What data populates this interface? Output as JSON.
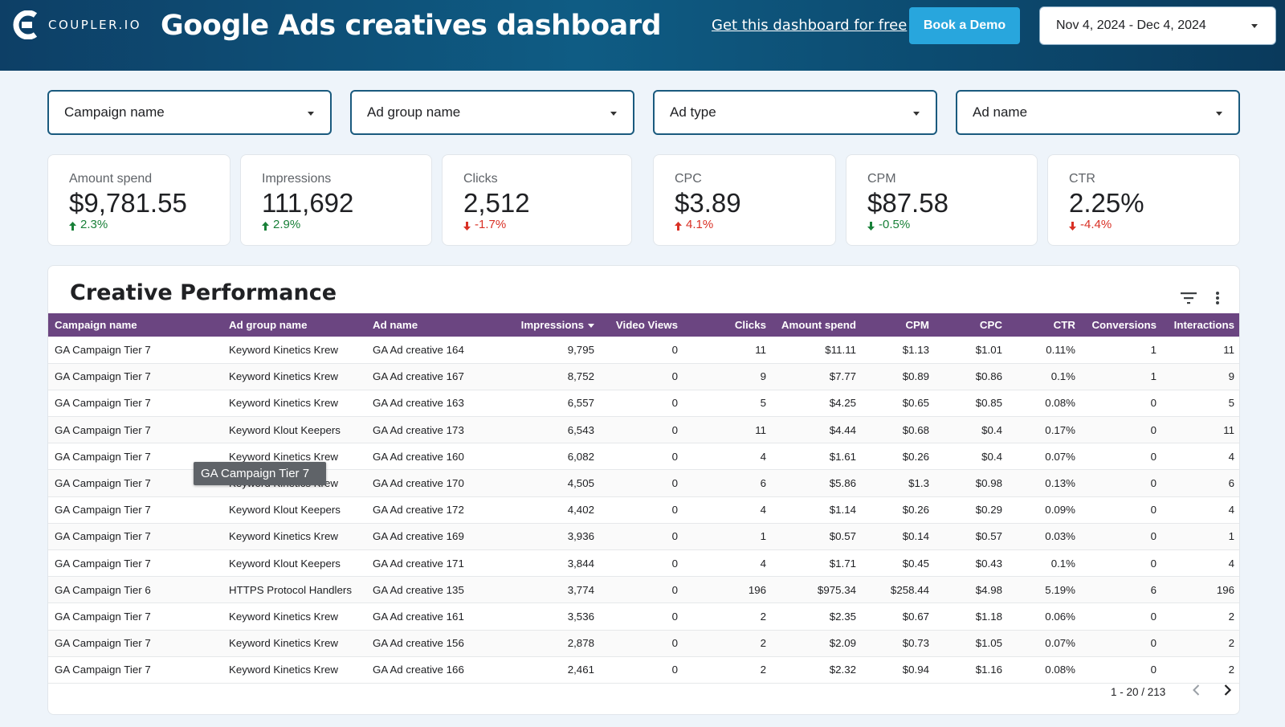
{
  "header": {
    "logo_text": "COUPLER.IO",
    "title": "Google Ads creatives dashboard",
    "free_link": "Get this dashboard for free",
    "demo_button": "Book a Demo",
    "date_range": "Nov 4, 2024 - Dec 4, 2024",
    "bg_color": "#0f5c84",
    "accent_color": "#28a6dd"
  },
  "filters": [
    {
      "label": "Campaign name"
    },
    {
      "label": "Ad group name"
    },
    {
      "label": "Ad type"
    },
    {
      "label": "Ad name"
    }
  ],
  "kpis": [
    {
      "label": "Amount spend",
      "value": "$9,781.55",
      "delta": "2.3%",
      "direction": "up",
      "sentiment": "good"
    },
    {
      "label": "Impressions",
      "value": "111,692",
      "delta": "2.9%",
      "direction": "up",
      "sentiment": "good"
    },
    {
      "label": "Clicks",
      "value": "2,512",
      "delta": "-1.7%",
      "direction": "down",
      "sentiment": "bad"
    },
    {
      "label": "CPC",
      "value": "$3.89",
      "delta": "4.1%",
      "direction": "up",
      "sentiment": "bad"
    },
    {
      "label": "CPM",
      "value": "$87.58",
      "delta": "-0.5%",
      "direction": "down",
      "sentiment": "good"
    },
    {
      "label": "CTR",
      "value": "2.25%",
      "delta": "-4.4%",
      "direction": "down",
      "sentiment": "bad"
    }
  ],
  "table": {
    "title": "Creative Performance",
    "header_color": "#6b4581",
    "columns": [
      "Campaign name",
      "Ad group name",
      "Ad name",
      "Impressions",
      "Video Views",
      "Clicks",
      "Amount spend",
      "CPM",
      "CPC",
      "CTR",
      "Conversions",
      "Interactions"
    ],
    "sorted_column": "Impressions",
    "rows": [
      [
        "GA Campaign Tier 7",
        "Keyword Kinetics Krew",
        "GA Ad creative 164",
        "9,795",
        "0",
        "11",
        "$11.11",
        "$1.13",
        "$1.01",
        "0.11%",
        "1",
        "11"
      ],
      [
        "GA Campaign Tier 7",
        "Keyword Kinetics Krew",
        "GA Ad creative 167",
        "8,752",
        "0",
        "9",
        "$7.77",
        "$0.89",
        "$0.86",
        "0.1%",
        "1",
        "9"
      ],
      [
        "GA Campaign Tier 7",
        "Keyword Kinetics Krew",
        "GA Ad creative 163",
        "6,557",
        "0",
        "5",
        "$4.25",
        "$0.65",
        "$0.85",
        "0.08%",
        "0",
        "5"
      ],
      [
        "GA Campaign Tier 7",
        "Keyword Klout Keepers",
        "GA Ad creative 173",
        "6,543",
        "0",
        "11",
        "$4.44",
        "$0.68",
        "$0.4",
        "0.17%",
        "0",
        "11"
      ],
      [
        "GA Campaign Tier 7",
        "Keyword Kinetics Krew",
        "GA Ad creative 160",
        "6,082",
        "0",
        "4",
        "$1.61",
        "$0.26",
        "$0.4",
        "0.07%",
        "0",
        "4"
      ],
      [
        "GA Campaign Tier 7",
        "Keyword Kinetics Krew",
        "GA Ad creative 170",
        "4,505",
        "0",
        "6",
        "$5.86",
        "$1.3",
        "$0.98",
        "0.13%",
        "0",
        "6"
      ],
      [
        "GA Campaign Tier 7",
        "Keyword Klout Keepers",
        "GA Ad creative 172",
        "4,402",
        "0",
        "4",
        "$1.14",
        "$0.26",
        "$0.29",
        "0.09%",
        "0",
        "4"
      ],
      [
        "GA Campaign Tier 7",
        "Keyword Kinetics Krew",
        "GA Ad creative 169",
        "3,936",
        "0",
        "1",
        "$0.57",
        "$0.14",
        "$0.57",
        "0.03%",
        "0",
        "1"
      ],
      [
        "GA Campaign Tier 7",
        "Keyword Klout Keepers",
        "GA Ad creative 171",
        "3,844",
        "0",
        "4",
        "$1.71",
        "$0.45",
        "$0.43",
        "0.1%",
        "0",
        "4"
      ],
      [
        "GA Campaign Tier 6",
        "HTTPS Protocol Handlers",
        "GA Ad creative 135",
        "3,774",
        "0",
        "196",
        "$975.34",
        "$258.44",
        "$4.98",
        "5.19%",
        "6",
        "196"
      ],
      [
        "GA Campaign Tier 7",
        "Keyword Kinetics Krew",
        "GA Ad creative 161",
        "3,536",
        "0",
        "2",
        "$2.35",
        "$0.67",
        "$1.18",
        "0.06%",
        "0",
        "2"
      ],
      [
        "GA Campaign Tier 7",
        "Keyword Kinetics Krew",
        "GA Ad creative 156",
        "2,878",
        "0",
        "2",
        "$2.09",
        "$0.73",
        "$1.05",
        "0.07%",
        "0",
        "2"
      ],
      [
        "GA Campaign Tier 7",
        "Keyword Kinetics Krew",
        "GA Ad creative 166",
        "2,461",
        "0",
        "2",
        "$2.32",
        "$0.94",
        "$1.16",
        "0.08%",
        "0",
        "2"
      ]
    ],
    "pagination": "1 - 20 / 213"
  },
  "tooltip": "GA Campaign Tier 7",
  "icons": {
    "logo": "coupler-logo-icon",
    "date_caret": "chevron-down-icon",
    "filter": "filter-icon",
    "more": "more-vert-icon",
    "prev": "chevron-left-icon",
    "next": "chevron-right-icon"
  }
}
